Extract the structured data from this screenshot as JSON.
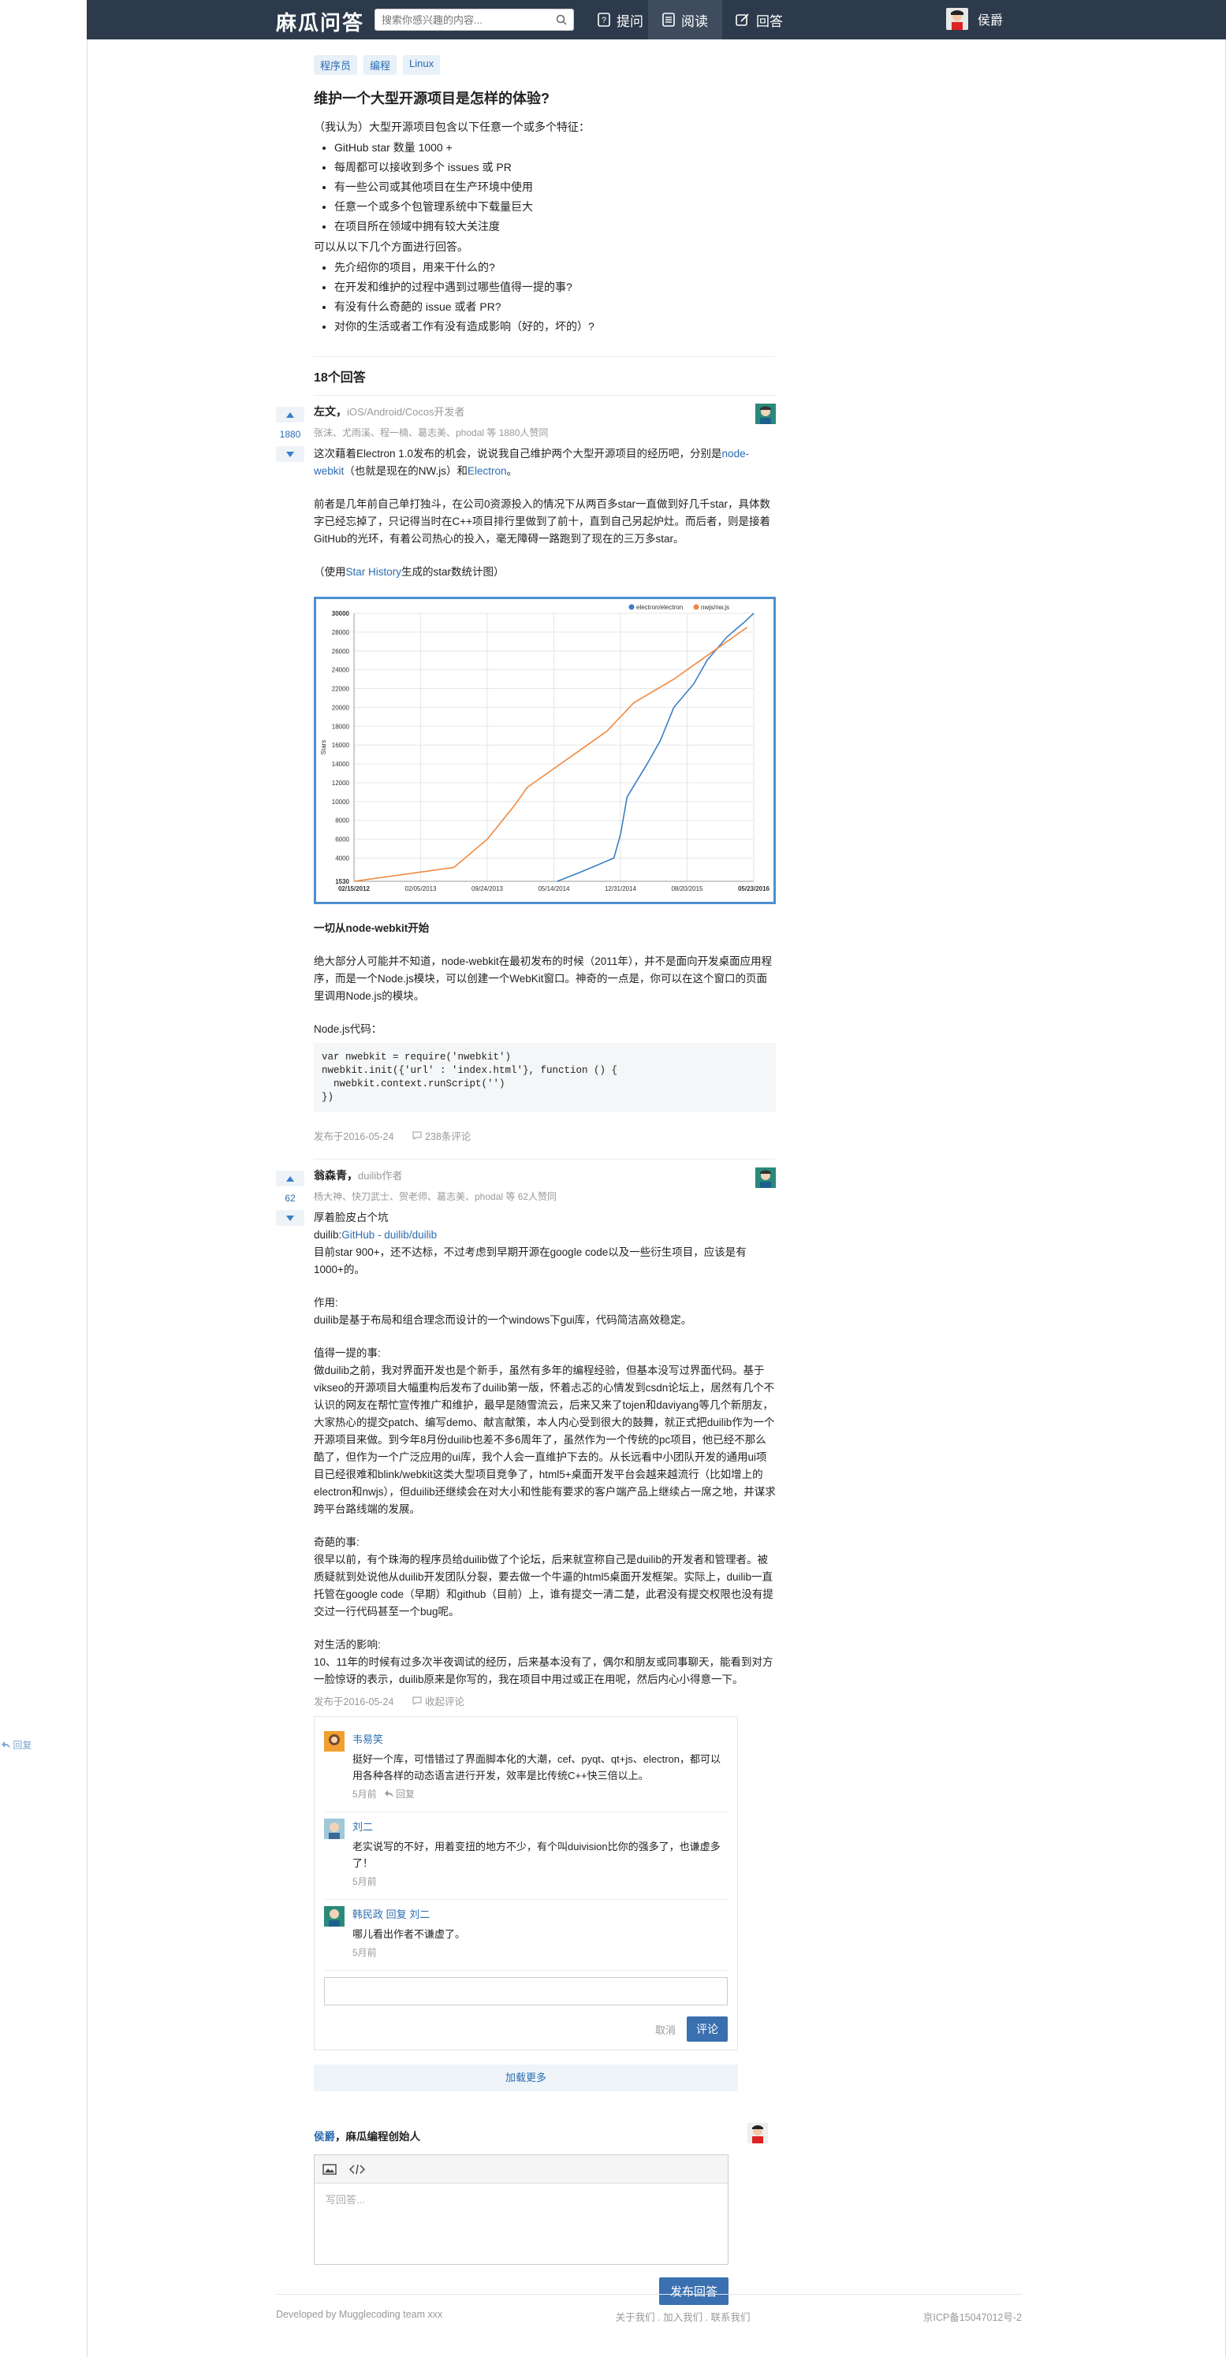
{
  "header": {
    "brand": "麻瓜问答",
    "search_placeholder": "搜索你感兴趣的内容...",
    "nav": [
      "提问",
      "阅读",
      "回答"
    ],
    "user": "侯爵"
  },
  "question": {
    "tags": [
      "程序员",
      "编程",
      "Linux"
    ],
    "title": "维护一个大型开源项目是怎样的体验?",
    "intro": "（我认为）大型开源项目包含以下任意一个或多个特征：",
    "features": [
      "GitHub star 数量 1000 +",
      "每周都可以接收到多个 issues 或 PR",
      "有一些公司或其他项目在生产环境中使用",
      "任意一个或多个包管理系统中下载量巨大",
      "在项目所在领域中拥有较大关注度"
    ],
    "middle": "可以从以下几个方面进行回答。",
    "aspects": [
      "先介绍你的项目，用来干什么的?",
      "在开发和维护的过程中遇到过哪些值得一提的事?",
      "有没有什么奇葩的 issue 或者 PR?",
      "对你的生活或者工作有没有造成影响（好的，坏的）?"
    ]
  },
  "answers_count": "18个回答",
  "answer1": {
    "votes": "1880",
    "author": "左文",
    "bio": "iOS/Android/Cocos开发者",
    "voters": "张沫、尤雨溪、程一楠、葛志美、phodal 等 1880人赞同",
    "p1a": "这次藉着Electron 1.0发布的机会，说说我自己维护两个大型开源项目的经历吧，分别是",
    "p1link": "node-webkit",
    "p1b": "（也就是现在的NW.js）和",
    "p1link2": "Electron",
    "p1c": "。",
    "p2": "前者是几年前自己单打独斗，在公司0资源投入的情况下从两百多star一直做到好几千star，具体数字已经忘掉了，只记得当时在C++项目排行里做到了前十，直到自己另起炉灶。而后者，则是接着GitHub的光环，有着公司热心的投入，毫无障碍一路跑到了现在的三万多star。",
    "p3a": "（使用",
    "p3link": "Star History",
    "p3b": "生成的star数统计图）",
    "sec": "一切从node-webkit开始",
    "p4": "绝大部分人可能并不知道，node-webkit在最初发布的时候（2011年），并不是面向开发桌面应用程序，而是一个Node.js模块，可以创建一个WebKit窗口。神奇的一点是，你可以在这个窗口的页面里调用Node.js的模块。",
    "p5": "Node.js代码：",
    "code": [
      "var nwebkit = require('nwebkit')",
      "nwebkit.init({'url' : 'index.html'}, function () {",
      "  nwebkit.context.runScript('')",
      "})"
    ],
    "date": "发布于2016-05-24",
    "comments": "238条评论"
  },
  "answer2": {
    "votes": "62",
    "author": "翁森青",
    "bio": "duilib作者",
    "voters": "杨大神、快刀武士、贺老师、葛志美、phodal 等 62人赞同",
    "l1": "厚着脸皮占个坑",
    "l2a": "duilib:",
    "l2link": "GitHub - duilib/duilib",
    "l3": "目前star 900+，还不达标，不过考虑到早期开源在google code以及一些衍生项目，应该是有1000+的。",
    "p_role_h": "作用:",
    "p_role": "duilib是基于布局和组合理念而设计的一个windows下gui库，代码简洁高效稳定。",
    "p_story_h": "值得一提的事:",
    "p_story": "做duilib之前，我对界面开发也是个新手，虽然有多年的编程经验，但基本没写过界面代码。基于vikseo的开源项目大幅重构后发布了duilib第一版，怀着忐忑的心情发到csdn论坛上，居然有几个不认识的网友在帮忙宣传推广和维护，最早是随雪流云，后来又来了tojen和daviyang等几个新朋友，大家热心的提交patch、编写demo、献言献策，本人内心受到很大的鼓舞，就正式把duilib作为一个开源项目来做。到今年8月份duilib也差不多6周年了，虽然作为一个传统的pc项目，他已经不那么酷了，但作为一个广泛应用的ui库，我个人会一直维护下去的。从长远看中小团队开发的通用ui项目已经很难和blink/webkit这类大型项目竞争了，html5+桌面开发平台会越来越流行（比如增上的electron和nwjs），但duilib还继续会在对大小和性能有要求的客户端产品上继续占一席之地，并谋求跨平台路线端的发展。",
    "p_weird_h": "奇葩的事:",
    "p_weird": "很早以前，有个珠海的程序员给duilib做了个论坛，后来就宣称自己是duilib的开发者和管理者。被质疑就到处说他从duilib开发团队分裂，要去做一个牛逼的html5桌面开发框架。实际上，duilib一直托管在google code（早期）和github（目前）上，谁有提交一清二楚，此君没有提交权限也没有提交过一行代码甚至一个bug呢。",
    "p_life_h": "对生活的影响:",
    "p_life": "10、11年的时候有过多次半夜调试的经历，后来基本没有了，偶尔和朋友或同事聊天，能看到对方一脸惊讶的表示，duilib原来是你写的，我在项目中用过或正在用呢，然后内心小得意一下。",
    "date": "发布于2016-05-24",
    "collapse": "收起评论",
    "comments": [
      {
        "name": "韦易笑",
        "text": "挺好一个库，可惜错过了界面脚本化的大潮，cef、pyqt、qt+js、electron，都可以用各种各样的动态语言进行开发，效率是比传统C++快三倍以上。",
        "time": "5月前",
        "reply": "回复"
      },
      {
        "name": "刘二",
        "text": "老实说写的不好，用着变扭的地方不少，有个叫duivision比你的强多了，也谦虚多了！",
        "time": "5月前"
      },
      {
        "name": "韩民政",
        "replyto": "回复 刘二",
        "text": "哪儿看出作者不谦虚了。",
        "time": "5月前"
      }
    ],
    "cancel": "取消",
    "submit": "评论"
  },
  "load_more": "加载更多",
  "my_answer": {
    "name": "侯爵",
    "title": "，麻瓜编程创始人",
    "placeholder": "写回答...",
    "publish": "发布回答"
  },
  "side_reply": "回复",
  "footer": {
    "left": "Developed by Mugglecoding team xxx",
    "mid": "关于我们 . 加入我们 . 联系我们",
    "right": "京ICP备15047012号-2"
  },
  "chart_data": {
    "type": "line",
    "ylabel": "Stars",
    "ylim": [
      1530,
      30000
    ],
    "yticks": [
      "30000",
      "28000",
      "26000",
      "24000",
      "22000",
      "20000",
      "18000",
      "16000",
      "14000",
      "12000",
      "10000",
      "8000",
      "6000",
      "4000",
      "1530"
    ],
    "xticks": [
      "02/15/2012",
      "02/05/2013",
      "09/24/2013",
      "05/14/2014",
      "12/31/2014",
      "08/20/2015",
      "05/23/2016"
    ],
    "series": [
      {
        "name": "electron/electron",
        "color": "#3a7ec7",
        "x": [
          3.05,
          3.4,
          3.9,
          4.0,
          4.1,
          4.4,
          4.6,
          4.8,
          5.1,
          5.3,
          5.6,
          5.85,
          6.0
        ],
        "y": [
          1530,
          2500,
          4000,
          6500,
          10500,
          14000,
          16500,
          20000,
          22500,
          25000,
          27500,
          29000,
          30000
        ]
      },
      {
        "name": "nwjs/nw.js",
        "color": "#f0883e",
        "x": [
          0.0,
          1.5,
          2.0,
          2.4,
          2.6,
          3.0,
          3.5,
          3.8,
          4.2,
          4.8,
          5.2,
          5.6,
          5.9
        ],
        "y": [
          1530,
          3000,
          6000,
          9500,
          11500,
          13500,
          16000,
          17500,
          20500,
          23000,
          25000,
          27000,
          28500
        ]
      }
    ]
  }
}
